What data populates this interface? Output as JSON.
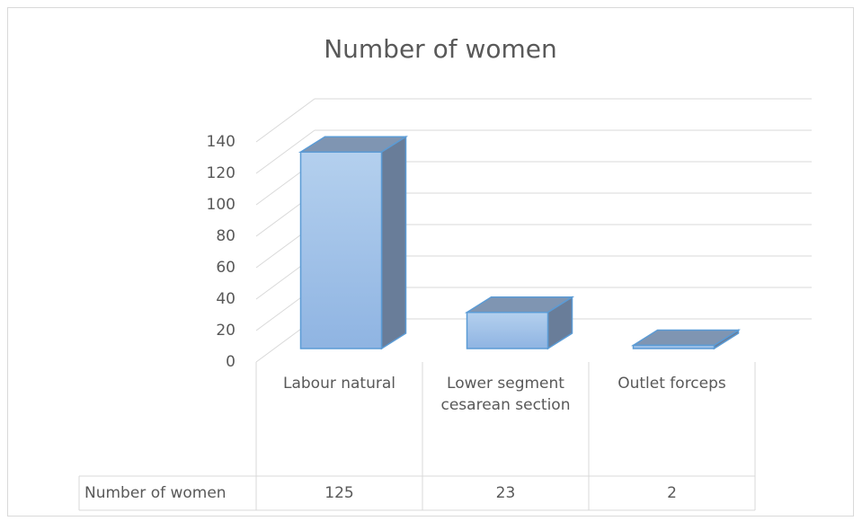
{
  "chart_data": {
    "type": "bar3d",
    "title": "Number of women",
    "categories": [
      "Labour natural",
      "Lower segment cesarean section",
      "Outlet forceps"
    ],
    "series": [
      {
        "name": "Number of women",
        "color": "#9dc0e8",
        "values": [
          125,
          23,
          2
        ]
      }
    ],
    "ylim": [
      0,
      140
    ],
    "yticks": [
      0,
      20,
      40,
      60,
      80,
      100,
      120,
      140
    ],
    "grid": true,
    "data_table": true
  }
}
